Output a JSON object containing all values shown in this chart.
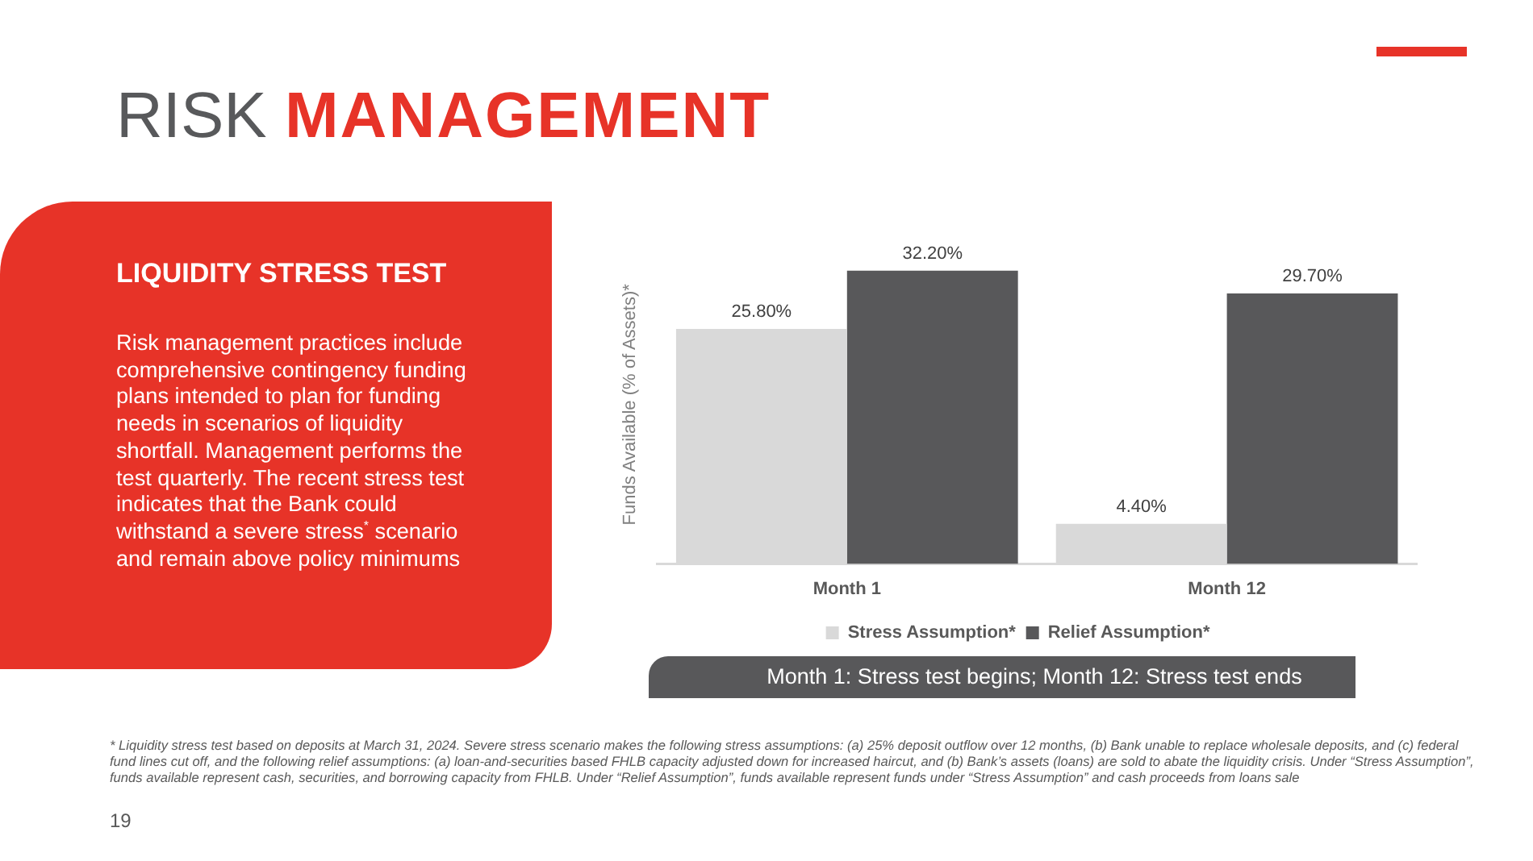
{
  "chart_data": {
    "type": "bar",
    "title": "RISK MANAGEMENT",
    "subtitle": "LIQUIDITY STRESS TEST",
    "ylabel": "Funds Available (% of Assets)*",
    "categories": [
      "Month 1",
      "Month 12"
    ],
    "series": [
      {
        "name": "Stress Assumption*",
        "color": "#d9d9d9",
        "values": [
          25.8,
          4.4
        ],
        "value_labels": [
          "25.80%",
          "4.40%"
        ]
      },
      {
        "name": "Relief Assumption*",
        "color": "#58585a",
        "values": [
          32.2,
          29.7
        ],
        "value_labels": [
          "32.20%",
          "29.70%"
        ]
      }
    ],
    "legend": "bottom",
    "grid": false,
    "tick_labels": "x",
    "annotations": [
      "Risk management practices include comprehensive contingency funding plans intended to plan for funding needs in scenarios of liquidity shortfall. Management performs the test quarterly. The recent stress test indicates that the Bank could withstand a severe stress$^{*}$ scenario and remain above policy minimums",
      "Month 1: Stress test begins; Month 12: Stress test ends",
      "* Liquidity stress test based on deposits at March 31, 2024. Severe stress scenario makes the following stress assumptions: (a) 25% deposit outflow over 12 months, (b) Bank unable to replace wholesale deposits, and (c) federal fund lines cut off, and the following relief assumptions: (a) loan-and-securities based FHLB capacity adjusted down for increased haircut, and (b) Bank’s assets (loans) are sold to abate the liquidity crisis. Under “Stress Assumption”, funds available represent cash, securities, and borrowing capacity from FHLB. Under “Relief Assumption”, funds available represent funds under “Stress Assumption” and cash proceeds from loans sale",
      "19"
    ]
  }
}
